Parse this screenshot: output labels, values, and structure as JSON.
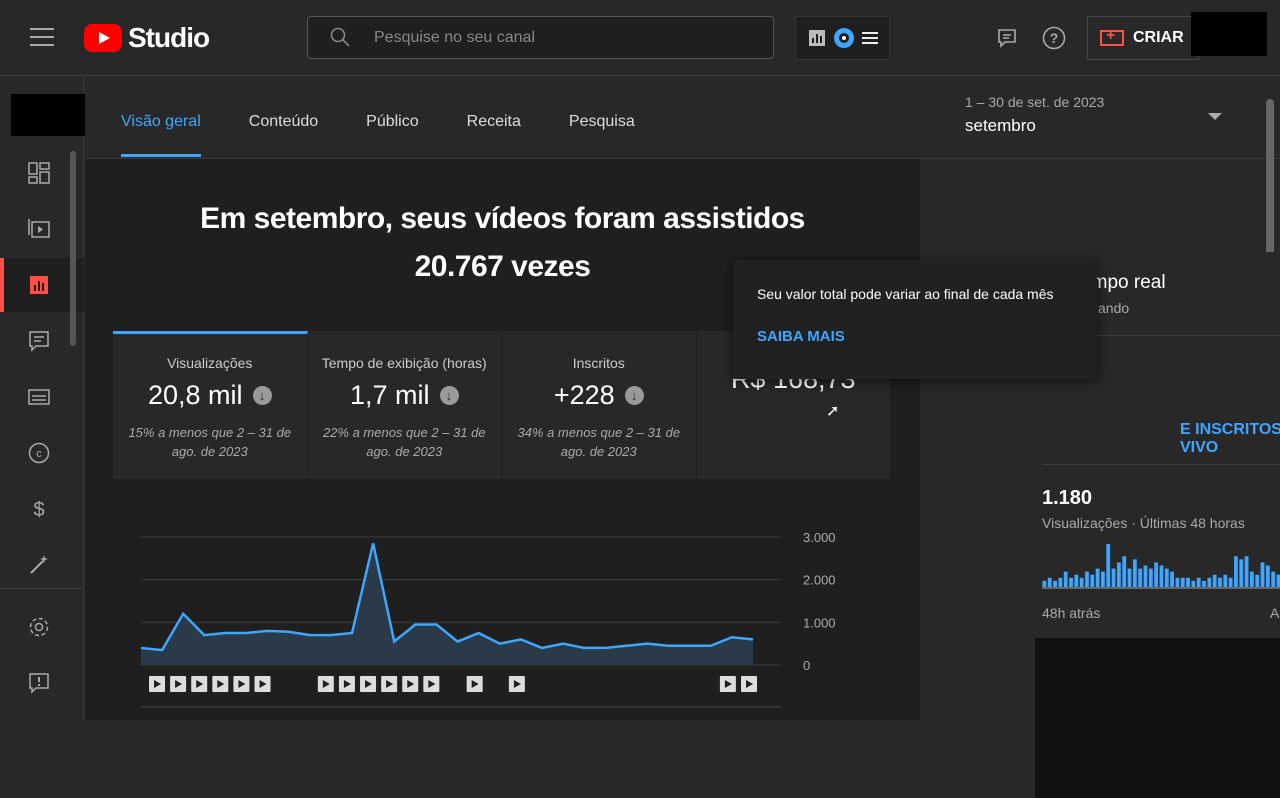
{
  "header": {
    "app_name": "Studio",
    "search_placeholder": "Pesquise no seu canal",
    "create_label": "CRIAR",
    "icons": [
      "menu-icon",
      "search-icon",
      "analytics-ext-icon",
      "extension-icon",
      "list-icon",
      "feedback-icon",
      "help-icon",
      "create-video-icon"
    ]
  },
  "sidebar": {
    "items": [
      {
        "name": "dashboard",
        "icon": "dashboard-icon"
      },
      {
        "name": "content",
        "icon": "content-icon"
      },
      {
        "name": "analytics",
        "icon": "analytics-icon",
        "active": true
      },
      {
        "name": "comments",
        "icon": "comments-icon"
      },
      {
        "name": "subtitles",
        "icon": "subtitles-icon"
      },
      {
        "name": "copyright",
        "icon": "copyright-icon"
      },
      {
        "name": "earn",
        "icon": "dollar-icon"
      },
      {
        "name": "customization",
        "icon": "magic-wand-icon"
      },
      {
        "name": "settings",
        "icon": "gear-icon"
      },
      {
        "name": "send-feedback",
        "icon": "feedback-alert-icon"
      }
    ]
  },
  "tabs": [
    {
      "label": "Visão geral",
      "active": true
    },
    {
      "label": "Conteúdo",
      "active": false
    },
    {
      "label": "Público",
      "active": false
    },
    {
      "label": "Receita",
      "active": false
    },
    {
      "label": "Pesquisa",
      "active": false
    }
  ],
  "period": {
    "range": "1 – 30 de set. de 2023",
    "name": "setembro"
  },
  "headline": {
    "line1": "Em setembro, seus vídeos foram assistidos",
    "line2": "20.767 vezes"
  },
  "cards": [
    {
      "label": "Visualizações",
      "value": "20,8 mil",
      "note": "15% a menos que 2 – 31 de ago. de 2023",
      "active": true
    },
    {
      "label": "Tempo de exibição (horas)",
      "value": "1,7 mil",
      "note": "22% a menos que 2 – 31 de ago. de 2023",
      "active": false
    },
    {
      "label": "Inscritos",
      "value": "+228",
      "note": "34% a menos que 2 – 31 de ago. de 2023",
      "active": false
    },
    {
      "label": "",
      "value": "R$ 168,73",
      "note": "",
      "active": false
    }
  ],
  "tooltip": {
    "message": "Seu valor total pode variar ao final de cada mês",
    "link": "SAIBA MAIS"
  },
  "chart_data": {
    "type": "area",
    "x": [
      1,
      2,
      3,
      4,
      5,
      6,
      7,
      8,
      9,
      10,
      11,
      12,
      13,
      14,
      15,
      16,
      17,
      18,
      19,
      20,
      21,
      22,
      23,
      24,
      25,
      26,
      27,
      28,
      29,
      30
    ],
    "series": [
      {
        "values": [
          400,
          350,
          1200,
          700,
          750,
          750,
          800,
          780,
          700,
          700,
          750,
          2850,
          550,
          950,
          950,
          550,
          750,
          500,
          600,
          400,
          500,
          400,
          400,
          450,
          500,
          450,
          450,
          450,
          650,
          600
        ]
      }
    ],
    "yticks": [
      "3.000",
      "2.000",
      "1.000",
      "0"
    ],
    "ylim": [
      0,
      3000
    ],
    "grid": true,
    "line_color": "#3ea6ff",
    "fill_color": "#2a3a48",
    "video_markers": [
      1,
      2,
      3,
      4,
      5,
      6,
      9,
      10,
      11,
      12,
      13,
      14,
      17,
      19,
      29,
      30
    ]
  },
  "realtime": {
    "title": "Em tempo real",
    "status": "Atualizando",
    "live_link": "E INSCRITOS AO VIVO",
    "count": "1.180",
    "count_label": "Visualizações · Últimas 48 horas",
    "start_label": "48h atrás",
    "end_label": "Agora",
    "spark": [
      2,
      3,
      2,
      3,
      5,
      3,
      4,
      3,
      5,
      4,
      6,
      5,
      14,
      6,
      8,
      10,
      6,
      9,
      6,
      7,
      6,
      8,
      7,
      6,
      5,
      3,
      3,
      3,
      2,
      3,
      2,
      3,
      4,
      3,
      4,
      3,
      10,
      9,
      10,
      5,
      4,
      8,
      7,
      5,
      4,
      7,
      5,
      4,
      3,
      1
    ]
  }
}
